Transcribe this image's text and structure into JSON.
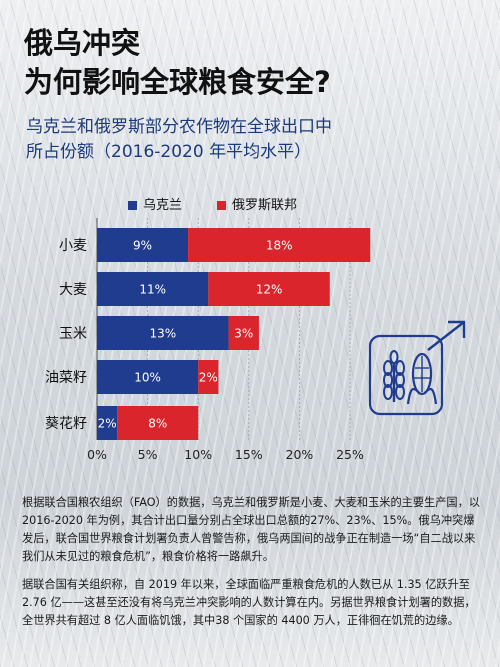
{
  "title_line1": "俄乌冲突",
  "title_line2": "为何影响全球粮食安全?",
  "subtitle_line1": "乌克兰和俄罗斯部分农作物在全球出口中",
  "subtitle_line2": "所占份额（2016-2020 年平均水平）",
  "colors": {
    "ukraine": "#1f3c8f",
    "russia": "#d9252b",
    "title": "#111111",
    "subtitle": "#1b3a7a"
  },
  "chart_data": {
    "type": "bar",
    "orientation": "horizontal",
    "stacked": true,
    "categories": [
      "小麦",
      "大麦",
      "玉米",
      "油菜籽",
      "葵花籽"
    ],
    "series": [
      {
        "name": "乌克兰",
        "values": [
          9,
          11,
          13,
          10,
          2
        ],
        "labels": [
          "9%",
          "11%",
          "13%",
          "10%",
          "2%"
        ],
        "color": "#1f3c8f"
      },
      {
        "name": "俄罗斯联邦",
        "values": [
          18,
          12,
          3,
          2,
          8
        ],
        "labels": [
          "18%",
          "12%",
          "3%",
          "2%",
          "8%"
        ],
        "color": "#d9252b"
      }
    ],
    "xlim": [
      0,
      27.5
    ],
    "xticks": [
      0,
      5,
      10,
      15,
      20,
      25
    ],
    "xtick_labels": [
      "0%",
      "5%",
      "10%",
      "15%",
      "20%",
      "25%"
    ],
    "grid": true,
    "legend_position": "top-left"
  },
  "notes": [
    "根据联合国粮农组织（FAO）的数据，乌克兰和俄罗斯是小麦、大麦和玉米的主要生产国，以2016-2020 年为例，其合计出口量分别占全球出口总额的27%、23%、15%。俄乌冲突爆发后，联合国世界粮食计划署负责人曾警告称，俄乌两国间的战争正在制造一场“自二战以来我们从未见过的粮食危机”，粮食价格将一路飙升。",
    "据联合国有关组织称，自 2019 年以来，全球面临严重粮食危机的人数已从 1.35 亿跃升至 2.76 亿——这甚至还没有将乌克兰冲突影响的人数计算在内。另据世界粮食计划署的数据，全世界共有超过 8 亿人面临饥饿，其中38 个国家的 4400 万人，正徘徊在饥荒的边缘。"
  ]
}
